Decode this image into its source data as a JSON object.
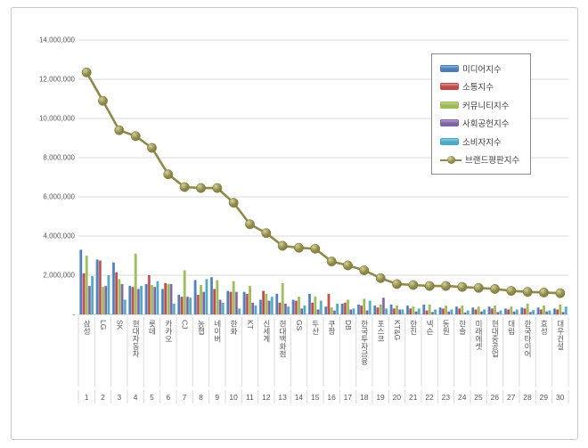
{
  "chart_data": {
    "type": "bar+line",
    "title": "",
    "xlabel": "",
    "ylabel": "",
    "grid": true,
    "legend_position": "upper-right",
    "ylim": [
      0,
      14000000
    ],
    "ytick_values": [
      14000000,
      12000000,
      10000000,
      8000000,
      6000000,
      4000000,
      2000000,
      0
    ],
    "ytick_labels": [
      "14,000,000",
      "12,000,000",
      "10,000,000",
      "8,000,000",
      "6,000,000",
      "4,000,000",
      "2,000,000",
      "-"
    ],
    "categories": [
      "삼성",
      "LG",
      "SK",
      "현대자동차",
      "롯데",
      "카카오",
      "CJ",
      "농협",
      "네이버",
      "한화",
      "KT",
      "신세계",
      "현대백화점",
      "GS",
      "두산",
      "쿠팡",
      "DB",
      "한국투자금융",
      "포스코",
      "KT&G",
      "한진",
      "넥슨",
      "동원",
      "한솔",
      "미래에셋",
      "현대중공업",
      "대림",
      "한국타이어",
      "효성",
      "대우건설"
    ],
    "ranks": [
      "1",
      "2",
      "3",
      "4",
      "5",
      "6",
      "7",
      "8",
      "9",
      "10",
      "11",
      "12",
      "13",
      "14",
      "15",
      "16",
      "17",
      "18",
      "19",
      "20",
      "21",
      "22",
      "23",
      "24",
      "25",
      "26",
      "27",
      "28",
      "29",
      "30"
    ],
    "series": [
      {
        "name": "미디어지수",
        "color": "#4A7EBB",
        "light": "#8FB2DA",
        "values": [
          3300000,
          2800000,
          2650000,
          1450000,
          1550000,
          1300000,
          1000000,
          1750000,
          1900000,
          1200000,
          1150000,
          750000,
          1050000,
          750000,
          1050000,
          400000,
          550000,
          500000,
          450000,
          500000,
          450000,
          500000,
          350000,
          400000,
          350000,
          400000,
          300000,
          350000,
          350000,
          300000
        ]
      },
      {
        "name": "소통지수",
        "color": "#BE4B48",
        "light": "#D99694",
        "values": [
          2100000,
          2750000,
          2150000,
          1400000,
          2000000,
          1600000,
          900000,
          1000000,
          1300000,
          1150000,
          1050000,
          1200000,
          600000,
          700000,
          600000,
          1050000,
          600000,
          450000,
          350000,
          300000,
          300000,
          200000,
          300000,
          300000,
          250000,
          300000,
          250000,
          300000,
          250000,
          250000
        ]
      },
      {
        "name": "커뮤니티지수",
        "color": "#9ABA58",
        "light": "#C3D69B",
        "values": [
          3000000,
          1400000,
          1800000,
          3100000,
          1500000,
          1550000,
          2250000,
          1500000,
          1750000,
          1700000,
          1450000,
          1050000,
          1600000,
          900000,
          900000,
          350000,
          750000,
          800000,
          500000,
          450000,
          400000,
          500000,
          450000,
          450000,
          400000,
          450000,
          400000,
          550000,
          450000,
          500000
        ]
      },
      {
        "name": "사회공헌지수",
        "color": "#7F63A1",
        "light": "#B2A1C7",
        "values": [
          1450000,
          1450000,
          1550000,
          1300000,
          1400000,
          1550000,
          900000,
          1150000,
          750000,
          1150000,
          600000,
          700000,
          550000,
          300000,
          250000,
          200000,
          250000,
          200000,
          850000,
          250000,
          150000,
          120000,
          150000,
          100000,
          150000,
          120000,
          150000,
          120000,
          150000,
          120000
        ]
      },
      {
        "name": "소비자지수",
        "color": "#4AAAC5",
        "light": "#93CDDF",
        "values": [
          1950000,
          2000000,
          750000,
          1450000,
          1700000,
          550000,
          850000,
          1800000,
          600000,
          300000,
          450000,
          900000,
          400000,
          450000,
          700000,
          550000,
          300000,
          700000,
          300000,
          250000,
          300000,
          250000,
          250000,
          200000,
          250000,
          200000,
          250000,
          220000,
          200000,
          400000
        ]
      }
    ],
    "line_series": {
      "name": "브랜드평판지수",
      "color": "#8E8A4A",
      "marker_light": "#D6D09A",
      "marker_dark": "#7C7738",
      "values": [
        12350000,
        10900000,
        9400000,
        9100000,
        8500000,
        7150000,
        6500000,
        6450000,
        6450000,
        5700000,
        4600000,
        4150000,
        3500000,
        3400000,
        3350000,
        2700000,
        2500000,
        2250000,
        1850000,
        1550000,
        1500000,
        1450000,
        1450000,
        1400000,
        1350000,
        1300000,
        1200000,
        1150000,
        1120000,
        1080000
      ]
    }
  },
  "colors": {
    "grid": "#d9d9d9",
    "axis": "#bfbfbf",
    "tick_text": "#595959",
    "frame_border": "#c8c8c8",
    "legend_border": "#8c8c8c"
  }
}
